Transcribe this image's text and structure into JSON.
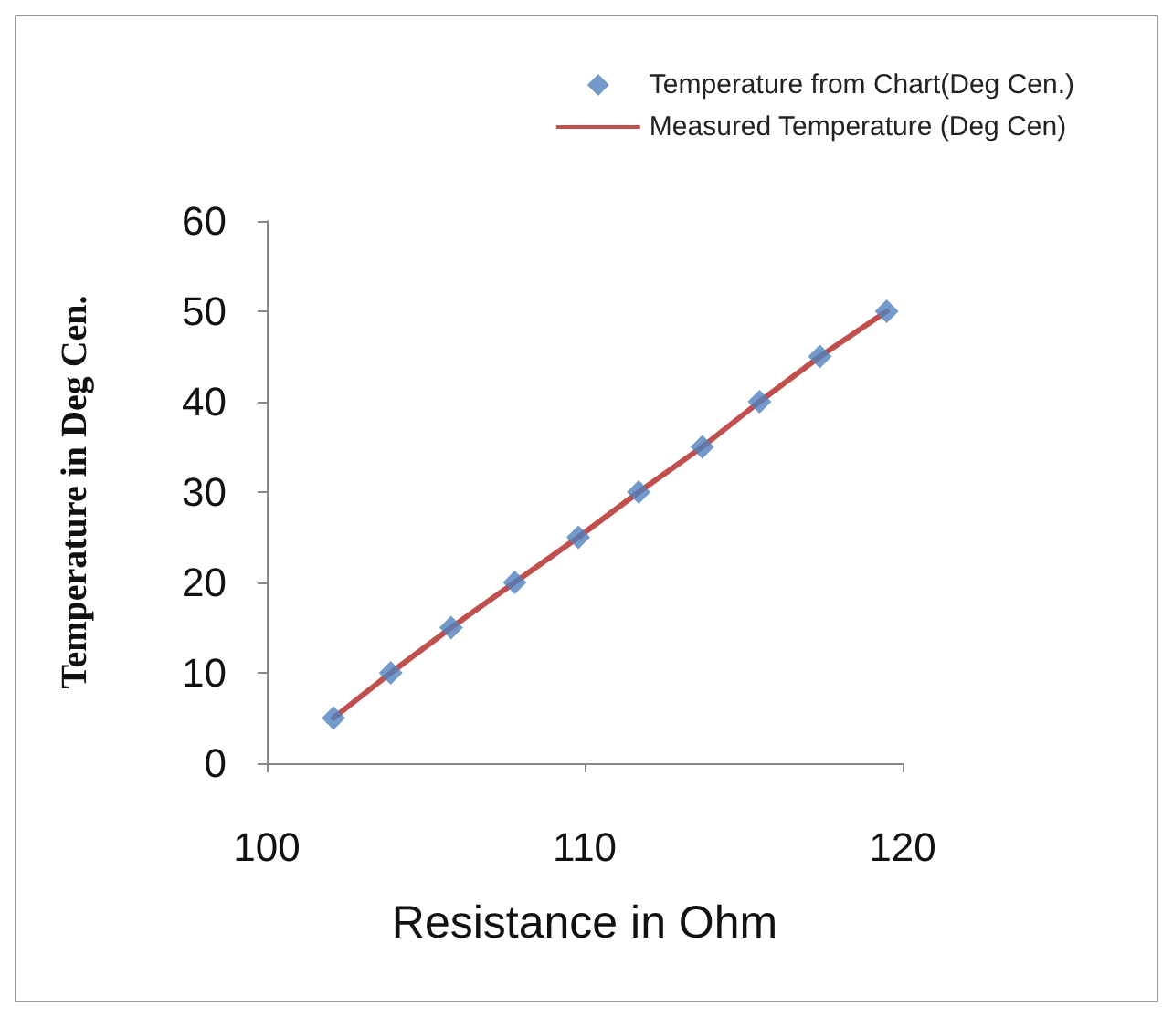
{
  "chart_data": {
    "type": "scatter",
    "xlabel": "Resistance in Ohm",
    "ylabel": "Temperature in Deg Cen.",
    "x": [
      102.1,
      103.9,
      105.8,
      107.8,
      109.8,
      111.7,
      113.7,
      115.5,
      117.4,
      119.5
    ],
    "series": [
      {
        "name": "Temperature from Chart(Deg Cen.)",
        "marker": "diamond",
        "color": "#4f81bd",
        "values": [
          5,
          10,
          15,
          20,
          25,
          30,
          35,
          40,
          45,
          50
        ]
      },
      {
        "name": "Measured Temperature (Deg Cen)",
        "type": "line",
        "marker": "none",
        "color": "#c0504d",
        "values": [
          5,
          10,
          15,
          20,
          25,
          30,
          35,
          40,
          45,
          50
        ]
      }
    ],
    "xlim": [
      100,
      120
    ],
    "xticks": [
      100,
      110,
      120
    ],
    "ylim": [
      0,
      60
    ],
    "yticks": [
      0,
      10,
      20,
      30,
      40,
      50,
      60
    ],
    "grid": false,
    "legend": "top right"
  }
}
